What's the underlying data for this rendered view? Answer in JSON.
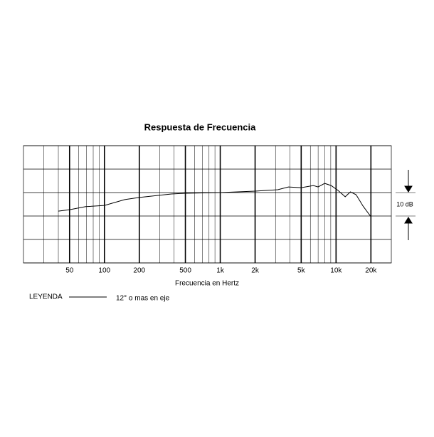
{
  "chart_data": {
    "type": "line",
    "title": "Respuesta de Frecuencia",
    "x_label": "Frecuencia en Hertz",
    "legend_title": "LEYENDA",
    "scale_annotation": "10 dB",
    "xscale": "log",
    "xlim": [
      20,
      30000
    ],
    "ylim": [
      -30,
      20
    ],
    "xticks": [
      50,
      100,
      200,
      500,
      {
        "value": 1000,
        "label": "1k"
      },
      {
        "value": 2000,
        "label": "2k"
      },
      {
        "value": 5000,
        "label": "5k"
      },
      {
        "value": 10000,
        "label": "10k"
      },
      {
        "value": 20000,
        "label": "20k"
      }
    ],
    "x_minor_grid": [
      30,
      40,
      60,
      70,
      80,
      90,
      300,
      400,
      600,
      700,
      800,
      900,
      3000,
      4000,
      6000,
      7000,
      8000,
      9000
    ],
    "y_grid": [
      -30,
      -20,
      -10,
      0,
      10,
      20
    ],
    "series": [
      {
        "name": "12° o mas en eje",
        "color": "#000000",
        "x": [
          40,
          50,
          69,
          100,
          150,
          200,
          378,
          500,
          1000,
          2000,
          3140,
          3880,
          5000,
          6370,
          7000,
          7980,
          9060,
          10400,
          12000,
          13300,
          14900,
          17100,
          20000
        ],
        "values": [
          -7.9,
          -7.3,
          -6,
          -5.5,
          -3,
          -2.1,
          -0.6,
          -0.3,
          0,
          0.6,
          1.2,
          2.4,
          2.1,
          3,
          2.4,
          3.9,
          3,
          0.9,
          -1.8,
          0.3,
          -0.9,
          -5.8,
          -10.3
        ]
      }
    ]
  }
}
